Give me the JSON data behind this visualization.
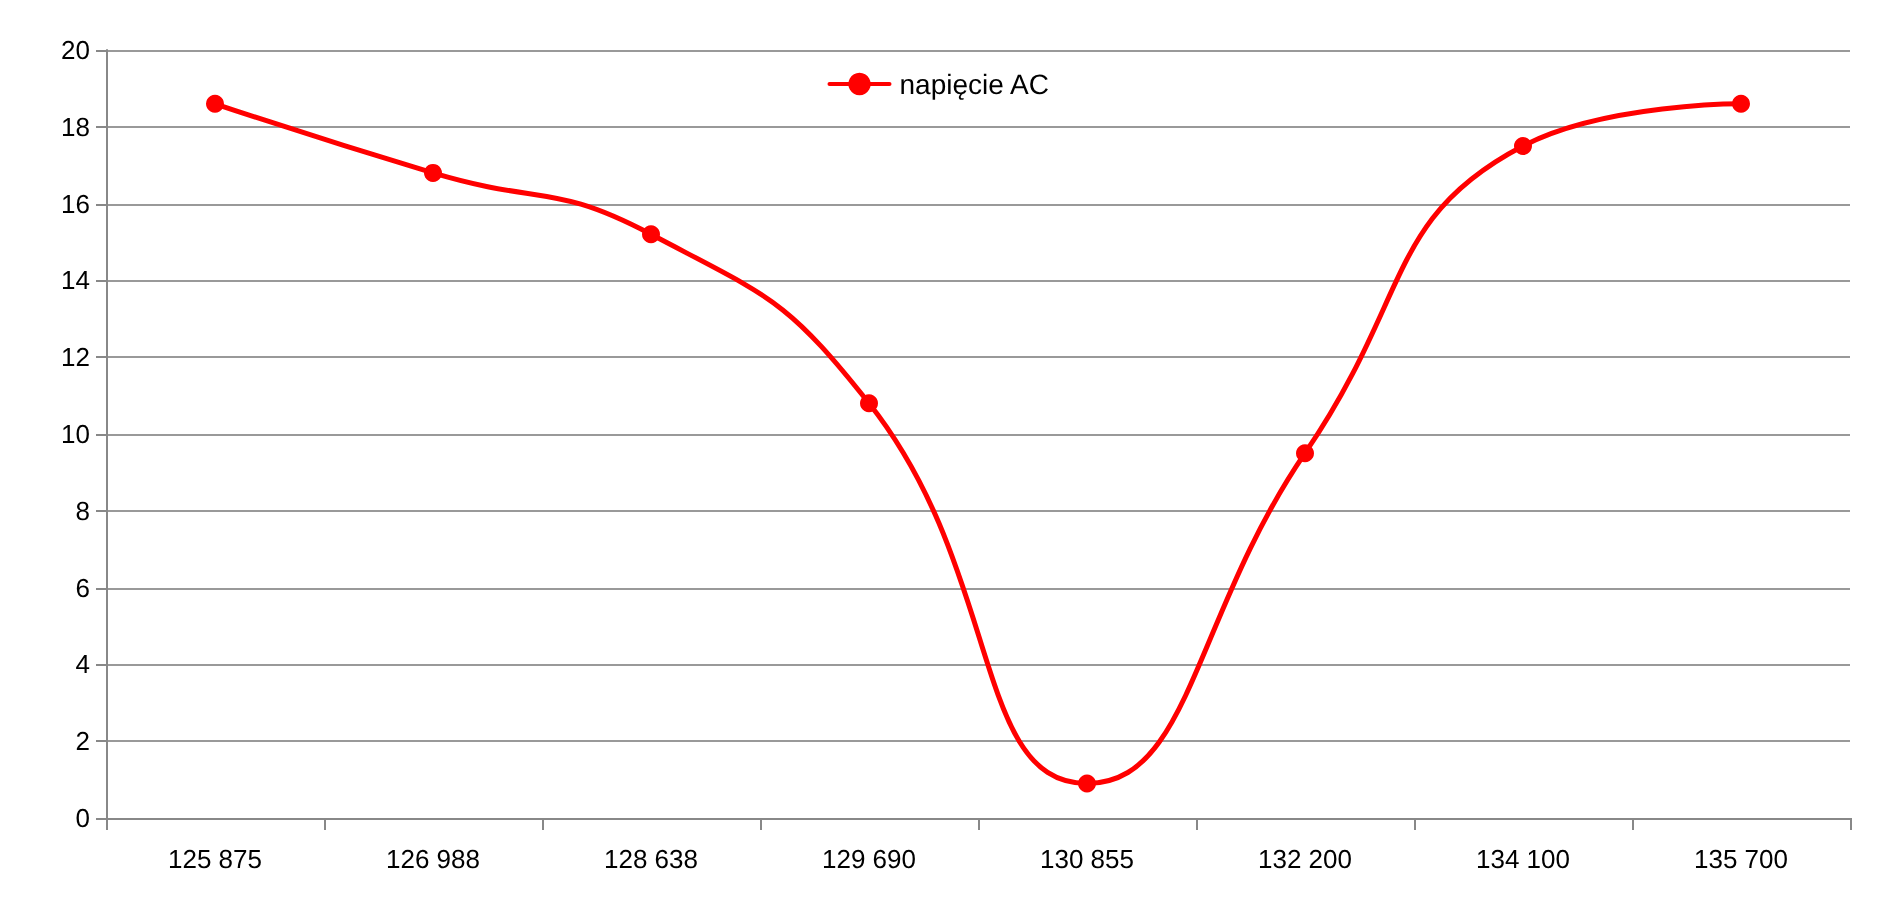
{
  "chart_data": {
    "type": "line",
    "categories": [
      "125 875",
      "126 988",
      "128 638",
      "129 690",
      "130 855",
      "132 200",
      "134 100",
      "135 700"
    ],
    "series": [
      {
        "name": "napięcie AC",
        "color": "#ff0000",
        "values": [
          18.6,
          16.8,
          15.2,
          10.8,
          0.9,
          9.5,
          17.5,
          18.6
        ]
      }
    ],
    "ylim": [
      0,
      20
    ],
    "yticks": [
      0,
      2,
      4,
      6,
      8,
      10,
      12,
      14,
      16,
      18,
      20
    ],
    "grid": "y",
    "legend": "top",
    "marker": "circle",
    "line_style": "solid"
  }
}
